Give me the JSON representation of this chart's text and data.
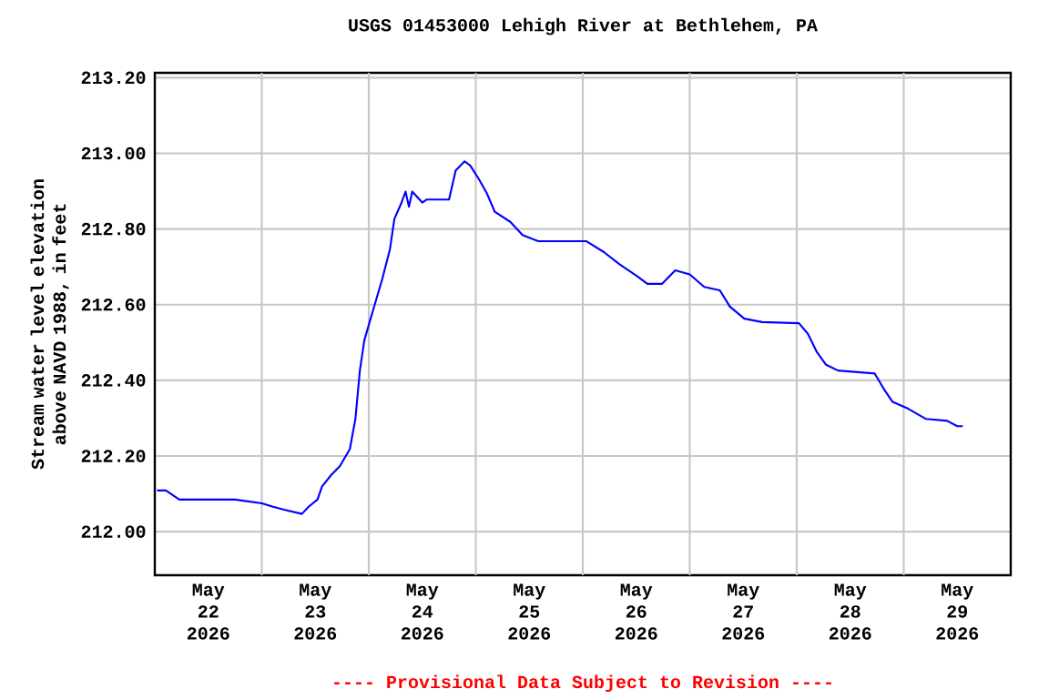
{
  "chart_data": {
    "type": "line",
    "title": "USGS 01453000 Lehigh River at Bethlehem, PA",
    "ylabel": "Stream water level elevation above NAVD 1988, in feet",
    "color": "#0000ff",
    "grid": true,
    "x": [
      "2026-05-22T00:30",
      "2026-05-22T02:30",
      "2026-05-22T05:30",
      "2026-05-22T18:00",
      "2026-05-23T00:00",
      "2026-05-23T02:30",
      "2026-05-23T05:00",
      "2026-05-23T09:00",
      "2026-05-23T10:30",
      "2026-05-23T12:30",
      "2026-05-23T13:30",
      "2026-05-23T15:30",
      "2026-05-23T17:30",
      "2026-05-23T19:45",
      "2026-05-23T21:00",
      "2026-05-23T22:00",
      "2026-05-23T23:00",
      "2026-05-24T01:00",
      "2026-05-24T03:00",
      "2026-05-24T04:45",
      "2026-05-24T05:45",
      "2026-05-24T07:15",
      "2026-05-24T08:15",
      "2026-05-24T09:00",
      "2026-05-24T09:45",
      "2026-05-24T12:00",
      "2026-05-24T13:00",
      "2026-05-24T18:00",
      "2026-05-24T19:30",
      "2026-05-24T21:30",
      "2026-05-24T22:45",
      "2026-05-25T00:45",
      "2026-05-25T02:30",
      "2026-05-25T04:15",
      "2026-05-25T07:45",
      "2026-05-25T10:30",
      "2026-05-25T14:00",
      "2026-05-26T00:45",
      "2026-05-26T04:45",
      "2026-05-26T08:15",
      "2026-05-26T12:15",
      "2026-05-26T14:30",
      "2026-05-26T17:45",
      "2026-05-26T20:45",
      "2026-05-27T00:00",
      "2026-05-27T03:15",
      "2026-05-27T06:45",
      "2026-05-27T09:00",
      "2026-05-27T12:15",
      "2026-05-27T16:15",
      "2026-05-28T00:30",
      "2026-05-28T02:30",
      "2026-05-28T04:30",
      "2026-05-28T06:30",
      "2026-05-28T09:15",
      "2026-05-28T17:30",
      "2026-05-28T19:30",
      "2026-05-28T21:30",
      "2026-05-29T01:00",
      "2026-05-29T05:00",
      "2026-05-29T09:45",
      "2026-05-29T12:00",
      "2026-05-29T13:15"
    ],
    "values": [
      212.109,
      212.109,
      212.085,
      212.085,
      212.075,
      212.066,
      212.058,
      212.047,
      212.066,
      212.085,
      212.119,
      212.149,
      212.173,
      212.218,
      212.298,
      212.426,
      212.506,
      212.587,
      212.667,
      212.747,
      212.827,
      212.867,
      212.899,
      212.859,
      212.899,
      212.87,
      212.878,
      212.878,
      212.955,
      212.979,
      212.968,
      212.931,
      212.894,
      212.846,
      212.819,
      212.784,
      212.768,
      212.768,
      212.739,
      212.707,
      212.675,
      212.655,
      212.655,
      212.691,
      212.68,
      212.647,
      212.638,
      212.595,
      212.563,
      212.554,
      212.551,
      212.523,
      212.475,
      212.442,
      212.426,
      212.418,
      212.378,
      212.343,
      212.325,
      212.298,
      212.293,
      212.279,
      212.279
    ],
    "xlim": [
      "2026-05-22T00:00",
      "2026-05-30T00:00"
    ],
    "xticks": [
      {
        "value": "2026-05-22T12:00",
        "label": "May 22 2026"
      },
      {
        "value": "2026-05-23T00:00",
        "label": null
      },
      {
        "value": "2026-05-23T12:00",
        "label": "May 23 2026"
      },
      {
        "value": "2026-05-24T00:00",
        "label": null
      },
      {
        "value": "2026-05-24T12:00",
        "label": "May 24 2026"
      },
      {
        "value": "2026-05-25T00:00",
        "label": null
      },
      {
        "value": "2026-05-25T12:00",
        "label": "May 25 2026"
      },
      {
        "value": "2026-05-26T00:00",
        "label": null
      },
      {
        "value": "2026-05-26T12:00",
        "label": "May 26 2026"
      },
      {
        "value": "2026-05-27T00:00",
        "label": null
      },
      {
        "value": "2026-05-27T12:00",
        "label": "May 27 2026"
      },
      {
        "value": "2026-05-28T00:00",
        "label": null
      },
      {
        "value": "2026-05-28T12:00",
        "label": "May 28 2026"
      },
      {
        "value": "2026-05-29T00:00",
        "label": null
      },
      {
        "value": "2026-05-29T12:00",
        "label": "May 29 2026"
      }
    ],
    "ylim": [
      211.885,
      213.213
    ],
    "yticks": [
      {
        "value": 212.0,
        "label": "212.00"
      },
      {
        "value": 212.2,
        "label": "212.20"
      },
      {
        "value": 212.4,
        "label": "212.40"
      },
      {
        "value": 212.6,
        "label": "212.60"
      },
      {
        "value": 212.8,
        "label": "212.80"
      },
      {
        "value": 213.0,
        "label": "213.00"
      },
      {
        "value": 213.2,
        "label": "213.20"
      }
    ],
    "annotations": [
      "---- Provisional Data Subject to Revision ----"
    ]
  }
}
